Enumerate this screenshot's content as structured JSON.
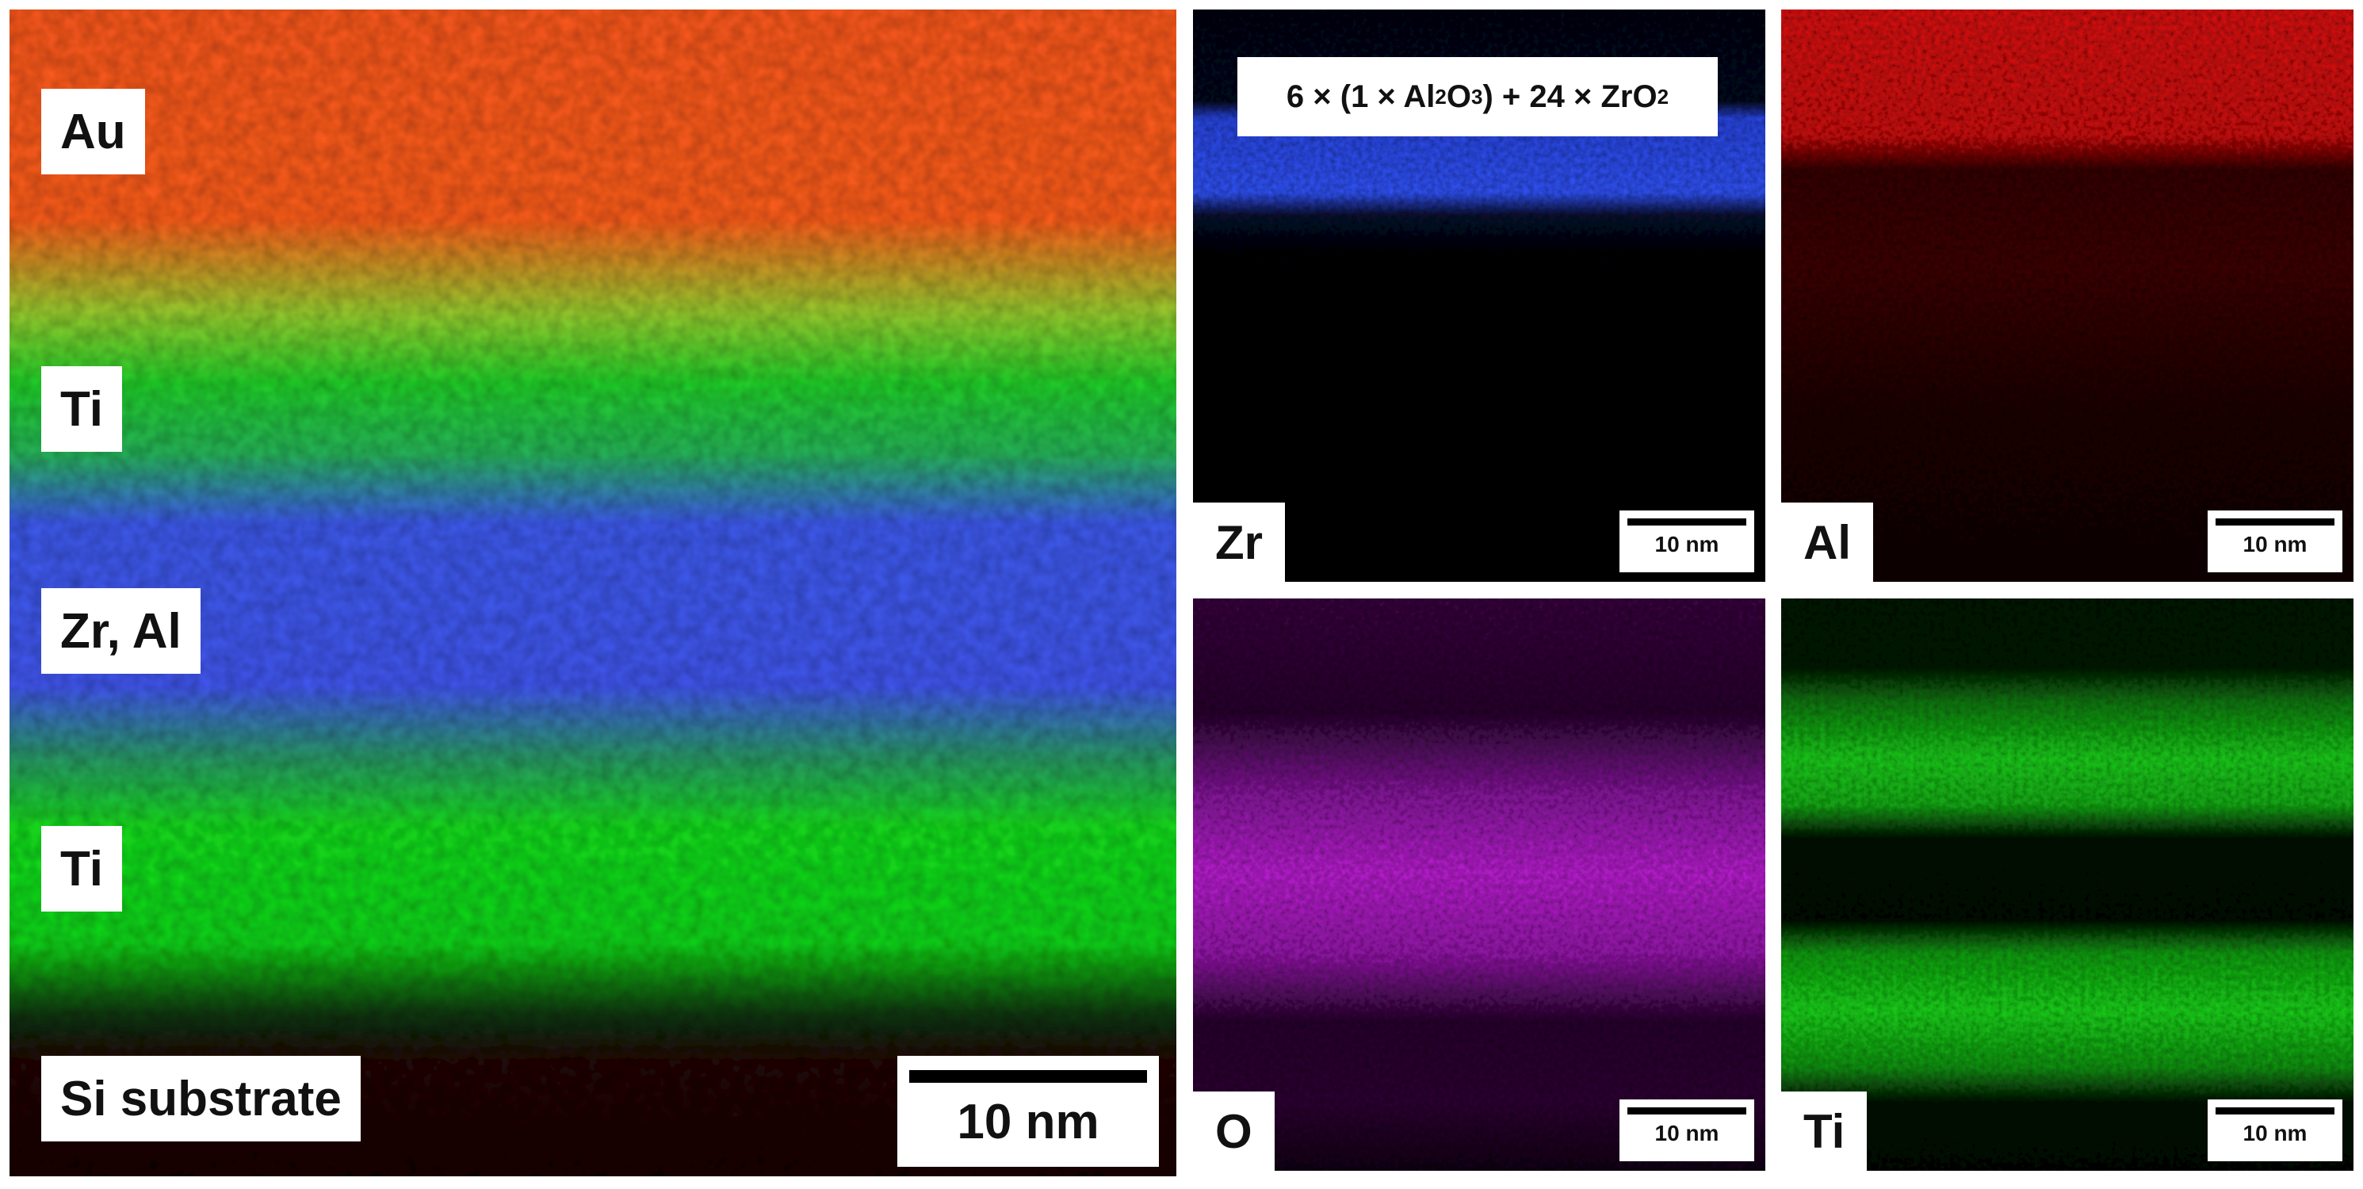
{
  "main_panel": {
    "layer_labels": [
      "Au",
      "Ti",
      "Zr, Al",
      "Ti",
      "Si substrate"
    ],
    "scale_bar": "10 nm",
    "colors": {
      "Au": "#ff4a14",
      "Ti": "#18e818",
      "Zr": "#3a50ff",
      "Al": "#ff1a2e",
      "Si": "#3a0606"
    }
  },
  "formula": {
    "part1": "6 × (1 × Al",
    "sub1": "2",
    "part2": "O",
    "sub2": "3",
    "part3": ") + 24 × ZrO",
    "sub3": "2"
  },
  "maps": [
    {
      "element": "Zr",
      "scale_bar": "10 nm",
      "color": "#2f55ff"
    },
    {
      "element": "Al",
      "scale_bar": "10 nm",
      "color": "#ff1414"
    },
    {
      "element": "O",
      "scale_bar": "10 nm",
      "color": "#d21ee6"
    },
    {
      "element": "Ti",
      "scale_bar": "10 nm",
      "color": "#1ee11e"
    }
  ]
}
